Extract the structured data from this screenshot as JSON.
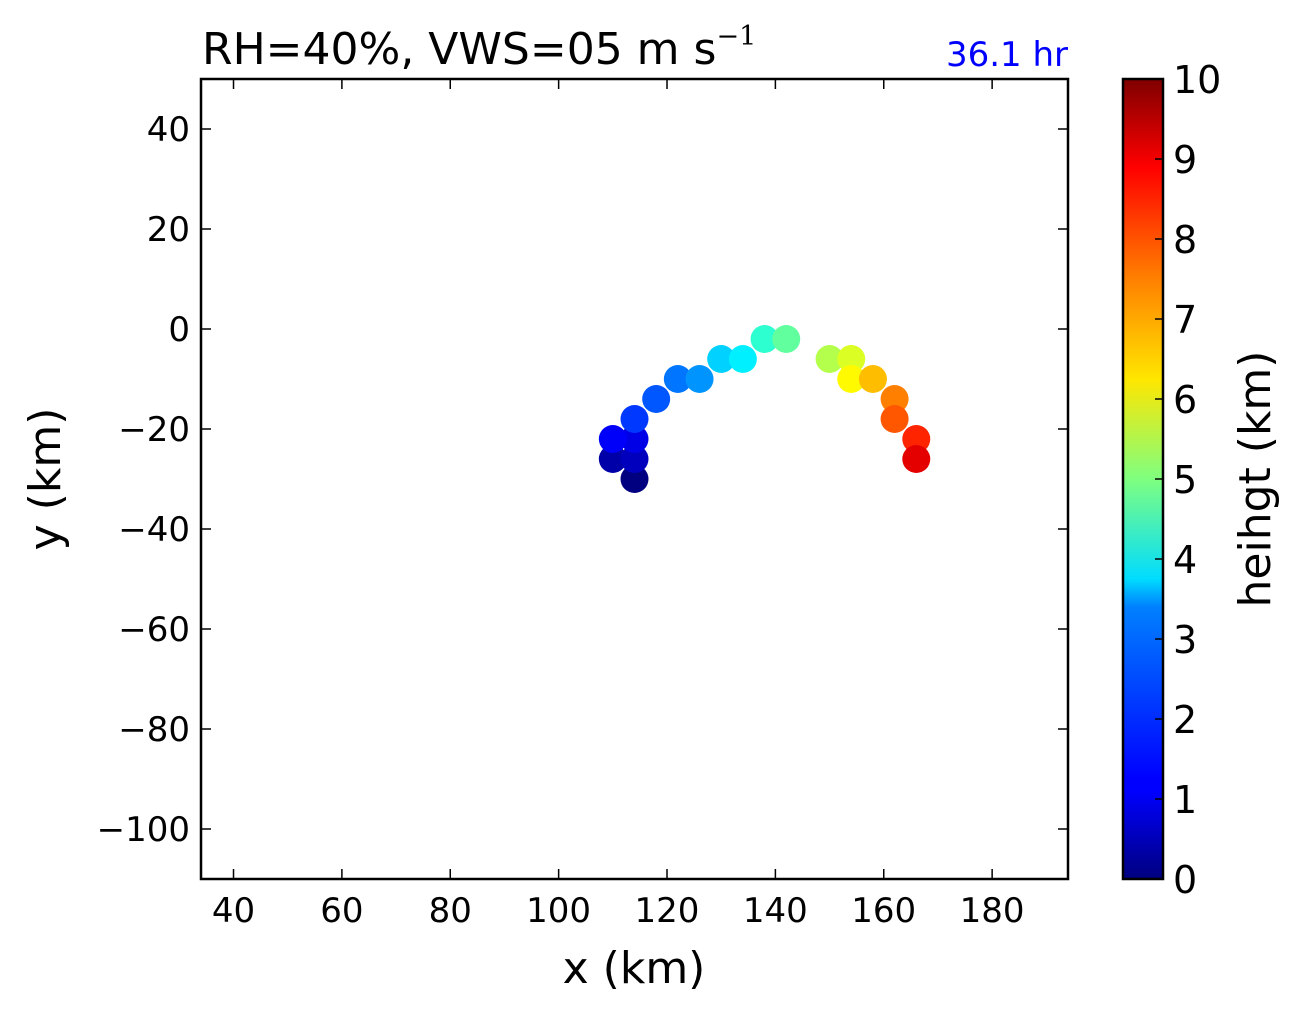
{
  "chart_data": {
    "type": "scatter",
    "title": {
      "main": "RH=40%, VWS=05 m s",
      "superscript": "−1"
    },
    "annotation": "36.1 hr",
    "annotation_color": "#0000ff",
    "xlabel": "x (km)",
    "ylabel": "y (km)",
    "xlim": [
      34,
      194
    ],
    "ylim": [
      -110,
      50
    ],
    "xticks": [
      40,
      60,
      80,
      100,
      120,
      140,
      160,
      180
    ],
    "yticks": [
      40,
      20,
      0,
      -20,
      -40,
      -60,
      -80,
      -100
    ],
    "xtick_labels": [
      "40",
      "60",
      "80",
      "100",
      "120",
      "140",
      "160",
      "180"
    ],
    "ytick_labels": [
      "40",
      "20",
      "0",
      "−20",
      "−40",
      "−60",
      "−80",
      "−100"
    ],
    "colorbar": {
      "label": "heihgt (km)",
      "range": [
        0,
        10
      ],
      "ticks": [
        0,
        1,
        2,
        3,
        4,
        5,
        6,
        7,
        8,
        9,
        10
      ],
      "tick_labels": [
        "0",
        "1",
        "2",
        "3",
        "4",
        "5",
        "6",
        "7",
        "8",
        "9",
        "10"
      ],
      "colormap": "jet"
    },
    "points": [
      {
        "x": 114,
        "y": -30,
        "z": 0.0
      },
      {
        "x": 110,
        "y": -26,
        "z": 0.4
      },
      {
        "x": 114,
        "y": -26,
        "z": 0.6
      },
      {
        "x": 114,
        "y": -22,
        "z": 1.0
      },
      {
        "x": 110,
        "y": -22,
        "z": 1.2
      },
      {
        "x": 114,
        "y": -18,
        "z": 1.8
      },
      {
        "x": 118,
        "y": -14,
        "z": 2.1
      },
      {
        "x": 122,
        "y": -10,
        "z": 2.4
      },
      {
        "x": 126,
        "y": -10,
        "z": 2.7
      },
      {
        "x": 130,
        "y": -6,
        "z": 3.3
      },
      {
        "x": 134,
        "y": -6,
        "z": 3.6
      },
      {
        "x": 138,
        "y": -2,
        "z": 4.2
      },
      {
        "x": 142,
        "y": -2,
        "z": 4.7
      },
      {
        "x": 150,
        "y": -6,
        "z": 5.5
      },
      {
        "x": 154,
        "y": -6,
        "z": 5.9
      },
      {
        "x": 154,
        "y": -10,
        "z": 6.3
      },
      {
        "x": 158,
        "y": -10,
        "z": 6.9
      },
      {
        "x": 162,
        "y": -14,
        "z": 7.5
      },
      {
        "x": 162,
        "y": -18,
        "z": 7.9
      },
      {
        "x": 166,
        "y": -22,
        "z": 8.4
      },
      {
        "x": 166,
        "y": -26,
        "z": 9.0
      }
    ]
  }
}
